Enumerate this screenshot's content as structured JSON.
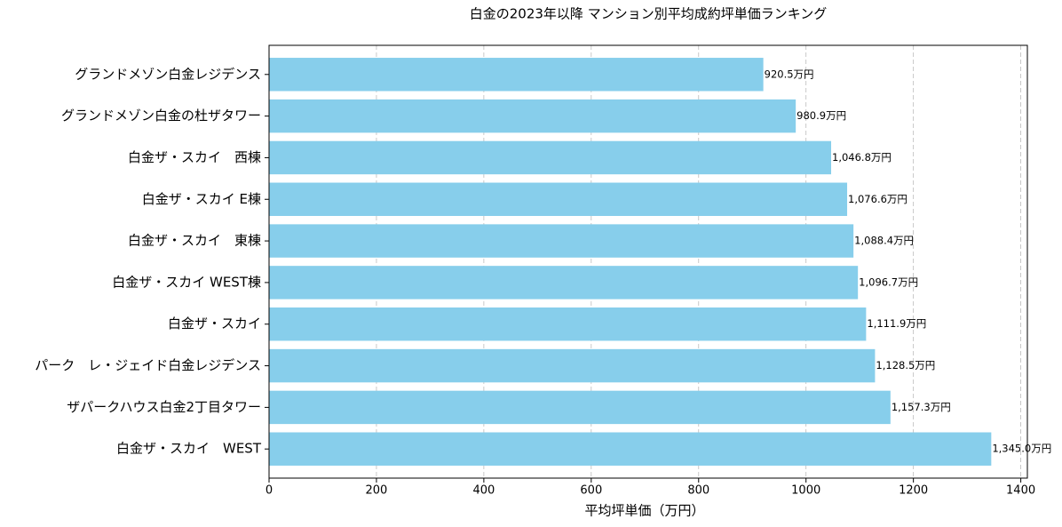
{
  "chart_data": {
    "type": "barh",
    "title": "白金の2023年以降 マンション別平均成約坪単価ランキング",
    "x_label": "平均坪単価（万円）",
    "categories": [
      "グランドメゾン白金レジデンス",
      "グランドメゾン白金の杜ザタワー",
      "白金ザ・スカイ　西棟",
      "白金ザ・スカイ E棟",
      "白金ザ・スカイ　東棟",
      "白金ザ・スカイ WEST棟",
      "白金ザ・スカイ",
      "パーク　レ・ジェイド白金レジデンス",
      "ザパークハウス白金2丁目タワー",
      "白金ザ・スカイ　WEST"
    ],
    "values": [
      920.5,
      980.9,
      1046.8,
      1076.6,
      1088.4,
      1096.7,
      1111.9,
      1128.5,
      1157.3,
      1345.0
    ],
    "value_labels": [
      "920.5万円",
      "980.9万円",
      "1,046.8万円",
      "1,076.6万円",
      "1,088.4万円",
      "1,096.7万円",
      "1,111.9万円",
      "1,128.5万円",
      "1,157.3万円",
      "1,345.0万円"
    ],
    "color": "#87ceeb",
    "xlim": [
      0,
      1412.25
    ],
    "xticks": [
      0,
      200,
      400,
      600,
      800,
      1000,
      1200,
      1400
    ],
    "grid": true
  }
}
